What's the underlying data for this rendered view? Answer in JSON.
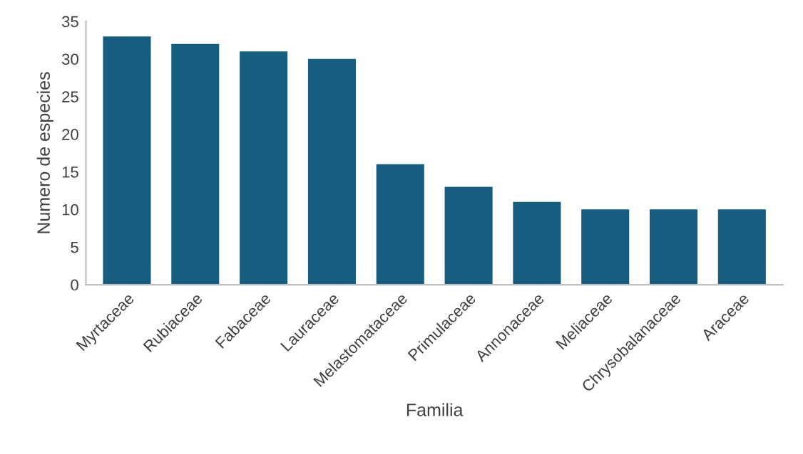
{
  "chart_data": {
    "type": "bar",
    "xlabel": "Familia",
    "ylabel": "Numero de especies",
    "categories": [
      "Myrtaceae",
      "Rubiaceae",
      "Fabaceae",
      "Lauraceae",
      "Melastomataceae",
      "Primulaceae",
      "Annonaceae",
      "Meliaceae",
      "Chrysobalanaceae",
      "Araceae"
    ],
    "values": [
      33,
      32,
      31,
      30,
      16,
      13,
      11,
      10,
      10,
      10
    ],
    "color": "#155e7f",
    "ylim": [
      0,
      35
    ],
    "yticks": [
      0,
      5,
      10,
      15,
      20,
      25,
      30,
      35
    ],
    "grid": false,
    "legend": false
  }
}
